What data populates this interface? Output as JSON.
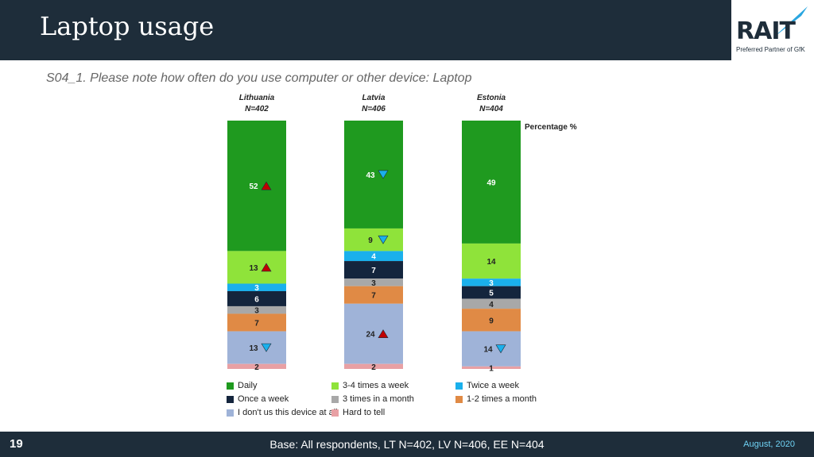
{
  "header": {
    "title": "Laptop usage"
  },
  "logo": {
    "text": "RAIT",
    "tagline": "Preferred Partner of GfK"
  },
  "question": "S04_1. Please note how often do you use computer or other device: Laptop",
  "footer": {
    "page_number": "19",
    "base": "Base: All respondents, LT N=402, LV N=406, EE N=404",
    "date": "August, 2020"
  },
  "chart_data": {
    "type": "bar",
    "stacked": true,
    "percent_label": "Percentage %",
    "categories": [
      {
        "name": "Lithuania",
        "n": "N=402"
      },
      {
        "name": "Latvia",
        "n": "N=406"
      },
      {
        "name": "Estonia",
        "n": "N=404"
      }
    ],
    "series": [
      {
        "name": "Daily",
        "color": "#1f9a1f",
        "text_color": "#ffffff",
        "values": [
          52,
          43,
          49
        ],
        "markers": [
          "up",
          "down",
          null
        ]
      },
      {
        "name": "3-4 times a week",
        "color": "#8fe33a",
        "text_color": "#222222",
        "values": [
          13,
          9,
          14
        ],
        "markers": [
          "up",
          "down",
          null
        ]
      },
      {
        "name": "Twice a week",
        "color": "#1ab0ec",
        "text_color": "#ffffff",
        "values": [
          3,
          4,
          3
        ],
        "markers": [
          null,
          null,
          null
        ]
      },
      {
        "name": "Once a week",
        "color": "#14253d",
        "text_color": "#ffffff",
        "values": [
          6,
          7,
          5
        ],
        "markers": [
          null,
          null,
          null
        ]
      },
      {
        "name": "3 times in a month",
        "color": "#a8a8a8",
        "text_color": "#222222",
        "values": [
          3,
          3,
          4
        ],
        "markers": [
          null,
          null,
          null
        ]
      },
      {
        "name": "1-2 times a month",
        "color": "#e08a45",
        "text_color": "#222222",
        "values": [
          7,
          7,
          9
        ],
        "markers": [
          null,
          null,
          null
        ]
      },
      {
        "name": "I don't us this device at all",
        "color": "#9fb3d8",
        "text_color": "#222222",
        "values": [
          13,
          24,
          14
        ],
        "markers": [
          "down",
          "up",
          "down"
        ]
      },
      {
        "name": "Hard to tell",
        "color": "#e8a0a4",
        "text_color": "#222222",
        "values": [
          2,
          2,
          1
        ],
        "markers": [
          null,
          null,
          null
        ]
      }
    ],
    "marker_colors": {
      "up": "#c00000",
      "down": "#1ab0ec"
    },
    "ylim": [
      0,
      100
    ]
  }
}
